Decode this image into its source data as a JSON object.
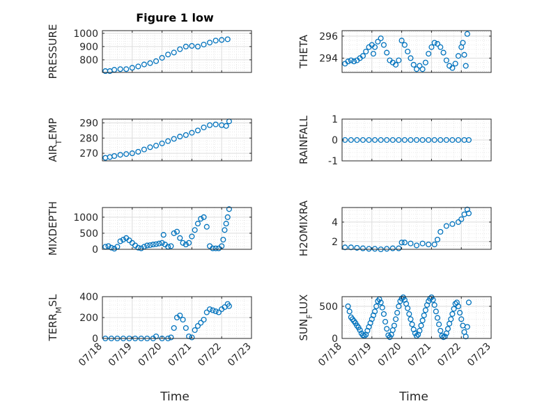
{
  "title": "Figure 1 low",
  "xlabel": "Time",
  "colors": {
    "series": "#0072BD",
    "axis": "#262626"
  },
  "chart_data": [
    {
      "type": "scatter",
      "ylabel": "PRESSURE",
      "xlim": [
        0,
        5
      ],
      "ylim": [
        705,
        1020
      ],
      "yticks": [
        800,
        900,
        1000
      ],
      "xticklabels": [],
      "x": [
        0.1,
        0.25,
        0.4,
        0.6,
        0.8,
        1.0,
        1.2,
        1.4,
        1.6,
        1.8,
        2.0,
        2.2,
        2.4,
        2.6,
        2.8,
        3.0,
        3.2,
        3.4,
        3.6,
        3.8,
        4.0,
        4.2
      ],
      "y": [
        715,
        715,
        725,
        730,
        730,
        740,
        750,
        765,
        775,
        790,
        815,
        840,
        855,
        880,
        900,
        905,
        900,
        915,
        930,
        945,
        950,
        955
      ]
    },
    {
      "type": "scatter",
      "ylabel": "THETA",
      "xlim": [
        0,
        5
      ],
      "ylim": [
        292.7,
        296.5
      ],
      "yticks": [
        294,
        296
      ],
      "xticklabels": [],
      "x": [
        0.1,
        0.2,
        0.3,
        0.4,
        0.5,
        0.6,
        0.7,
        0.8,
        0.9,
        1.0,
        1.05,
        1.1,
        1.2,
        1.3,
        1.4,
        1.5,
        1.6,
        1.7,
        1.8,
        1.9,
        2.0,
        2.1,
        2.2,
        2.3,
        2.4,
        2.5,
        2.6,
        2.7,
        2.8,
        2.9,
        3.0,
        3.1,
        3.2,
        3.3,
        3.4,
        3.5,
        3.6,
        3.7,
        3.8,
        3.9,
        4.0,
        4.05,
        4.1,
        4.15,
        4.2
      ],
      "y": [
        293.5,
        293.7,
        293.8,
        293.7,
        293.8,
        294.0,
        294.2,
        294.6,
        295.0,
        295.2,
        294.4,
        295.0,
        295.5,
        295.8,
        295.2,
        294.5,
        293.8,
        293.6,
        293.4,
        293.8,
        295.6,
        295.2,
        294.6,
        294.0,
        293.4,
        293.0,
        293.3,
        293.0,
        293.6,
        294.4,
        295.0,
        295.4,
        295.3,
        295.0,
        294.5,
        293.8,
        293.3,
        293.1,
        293.5,
        294.2,
        295.0,
        295.4,
        294.3,
        293.3,
        296.2
      ]
    },
    {
      "type": "scatter",
      "ylabel": "AIR_TEMP",
      "xlim": [
        0,
        5
      ],
      "ylim": [
        265,
        292.5
      ],
      "yticks": [
        270,
        280,
        290
      ],
      "xticklabels": [],
      "x": [
        0.1,
        0.25,
        0.4,
        0.6,
        0.8,
        1.0,
        1.2,
        1.4,
        1.6,
        1.8,
        2.0,
        2.2,
        2.4,
        2.6,
        2.8,
        3.0,
        3.2,
        3.4,
        3.6,
        3.8,
        4.0,
        4.15,
        4.25
      ],
      "y": [
        267,
        267.5,
        268.2,
        269,
        269.5,
        270,
        271,
        272.5,
        274,
        275,
        276.5,
        278,
        279.5,
        281,
        282,
        283.5,
        285,
        287,
        288.5,
        289,
        288.5,
        288,
        291
      ]
    },
    {
      "type": "scatter",
      "ylabel": "RAINFALL",
      "xlim": [
        0,
        5
      ],
      "ylim": [
        -1,
        1
      ],
      "yticks": [
        -1,
        0,
        1
      ],
      "xticklabels": [],
      "x": [
        0.1,
        0.3,
        0.5,
        0.7,
        0.9,
        1.1,
        1.3,
        1.5,
        1.7,
        1.9,
        2.1,
        2.3,
        2.5,
        2.7,
        2.9,
        3.1,
        3.3,
        3.5,
        3.7,
        3.9,
        4.1,
        4.25
      ],
      "y": [
        0,
        0,
        0,
        0,
        0,
        0,
        0,
        0,
        0,
        0,
        0,
        0,
        0,
        0,
        0,
        0,
        0,
        0,
        0,
        0,
        0,
        0
      ]
    },
    {
      "type": "scatter",
      "ylabel": "MIXDEPTH",
      "xlim": [
        0,
        5
      ],
      "ylim": [
        0,
        1300
      ],
      "yticks": [
        0,
        500,
        1000
      ],
      "xticklabels": [],
      "x": [
        0.1,
        0.2,
        0.3,
        0.4,
        0.5,
        0.6,
        0.7,
        0.8,
        0.9,
        1.0,
        1.1,
        1.2,
        1.3,
        1.4,
        1.5,
        1.6,
        1.7,
        1.8,
        1.9,
        2.0,
        2.05,
        2.1,
        2.2,
        2.3,
        2.4,
        2.5,
        2.6,
        2.7,
        2.8,
        2.9,
        3.0,
        3.1,
        3.2,
        3.3,
        3.4,
        3.5,
        3.6,
        3.7,
        3.8,
        3.9,
        4.0,
        4.05,
        4.1,
        4.15,
        4.2,
        4.25
      ],
      "y": [
        80,
        100,
        50,
        20,
        80,
        250,
        300,
        350,
        280,
        200,
        120,
        50,
        30,
        80,
        120,
        130,
        150,
        160,
        180,
        200,
        450,
        150,
        80,
        100,
        500,
        550,
        350,
        200,
        150,
        200,
        400,
        600,
        800,
        950,
        1000,
        700,
        100,
        30,
        30,
        30,
        100,
        300,
        600,
        800,
        1000,
        1250
      ]
    },
    {
      "type": "scatter",
      "ylabel": "H2OMIXRA",
      "xlim": [
        0,
        5
      ],
      "ylim": [
        1.2,
        5.5
      ],
      "yticks": [
        2,
        4
      ],
      "xticklabels": [],
      "x": [
        0.1,
        0.3,
        0.5,
        0.7,
        0.9,
        1.1,
        1.3,
        1.5,
        1.7,
        1.9,
        2.0,
        2.1,
        2.3,
        2.5,
        2.7,
        2.9,
        3.1,
        3.2,
        3.3,
        3.5,
        3.7,
        3.9,
        4.0,
        4.1,
        4.2,
        4.25
      ],
      "y": [
        1.4,
        1.4,
        1.35,
        1.3,
        1.25,
        1.25,
        1.2,
        1.25,
        1.3,
        1.3,
        1.9,
        1.9,
        1.8,
        1.6,
        1.8,
        1.7,
        1.7,
        2.2,
        3.0,
        3.6,
        3.8,
        4.0,
        4.3,
        4.8,
        5.3,
        4.9
      ]
    },
    {
      "type": "scatter",
      "ylabel": "TERR_MSL",
      "xlim": [
        0,
        5
      ],
      "ylim": [
        0,
        400
      ],
      "yticks": [
        0,
        200,
        400
      ],
      "xticklabels": [
        "07/18",
        "07/19",
        "07/20",
        "07/21",
        "07/22",
        "07/23"
      ],
      "x": [
        0.1,
        0.3,
        0.5,
        0.7,
        0.9,
        1.1,
        1.3,
        1.5,
        1.7,
        1.8,
        2.0,
        2.2,
        2.3,
        2.4,
        2.5,
        2.6,
        2.7,
        2.8,
        2.9,
        3.0,
        3.1,
        3.2,
        3.3,
        3.4,
        3.5,
        3.6,
        3.7,
        3.8,
        3.9,
        4.0,
        4.1,
        4.2,
        4.25
      ],
      "y": [
        0,
        0,
        0,
        0,
        0,
        0,
        0,
        0,
        0,
        20,
        0,
        0,
        10,
        100,
        200,
        220,
        180,
        100,
        20,
        10,
        80,
        120,
        150,
        180,
        250,
        280,
        270,
        260,
        250,
        280,
        300,
        330,
        310
      ]
    },
    {
      "type": "scatter",
      "ylabel": "SUN_FLUX",
      "xlim": [
        0,
        5
      ],
      "ylim": [
        0,
        650
      ],
      "yticks": [
        0,
        500
      ],
      "xticklabels": [
        "07/18",
        "07/19",
        "07/20",
        "07/21",
        "07/22",
        "07/23"
      ],
      "x": [
        0.2,
        0.25,
        0.3,
        0.35,
        0.4,
        0.45,
        0.5,
        0.55,
        0.6,
        0.65,
        0.7,
        0.75,
        0.8,
        0.85,
        0.9,
        0.95,
        1.0,
        1.05,
        1.1,
        1.15,
        1.2,
        1.25,
        1.3,
        1.35,
        1.4,
        1.45,
        1.5,
        1.55,
        1.6,
        1.65,
        1.7,
        1.75,
        1.8,
        1.85,
        1.9,
        1.95,
        2.0,
        2.05,
        2.1,
        2.15,
        2.2,
        2.25,
        2.3,
        2.35,
        2.4,
        2.45,
        2.5,
        2.55,
        2.6,
        2.65,
        2.7,
        2.75,
        2.8,
        2.85,
        2.9,
        2.95,
        3.0,
        3.05,
        3.1,
        3.15,
        3.2,
        3.25,
        3.3,
        3.35,
        3.4,
        3.45,
        3.5,
        3.55,
        3.6,
        3.65,
        3.7,
        3.75,
        3.8,
        3.85,
        3.9,
        3.95,
        4.0,
        4.05,
        4.1,
        4.15,
        4.2,
        4.25
      ],
      "y": [
        500,
        420,
        330,
        300,
        270,
        240,
        200,
        170,
        130,
        80,
        50,
        40,
        60,
        120,
        180,
        240,
        300,
        360,
        420,
        500,
        580,
        610,
        560,
        480,
        380,
        260,
        150,
        50,
        20,
        60,
        130,
        200,
        300,
        400,
        500,
        580,
        620,
        640,
        600,
        540,
        470,
        380,
        300,
        220,
        140,
        80,
        40,
        60,
        120,
        200,
        280,
        360,
        440,
        520,
        580,
        620,
        640,
        600,
        520,
        420,
        320,
        220,
        120,
        40,
        20,
        30,
        80,
        150,
        230,
        300,
        380,
        460,
        540,
        560,
        500,
        400,
        300,
        200,
        100,
        30,
        180,
        560
      ]
    }
  ]
}
